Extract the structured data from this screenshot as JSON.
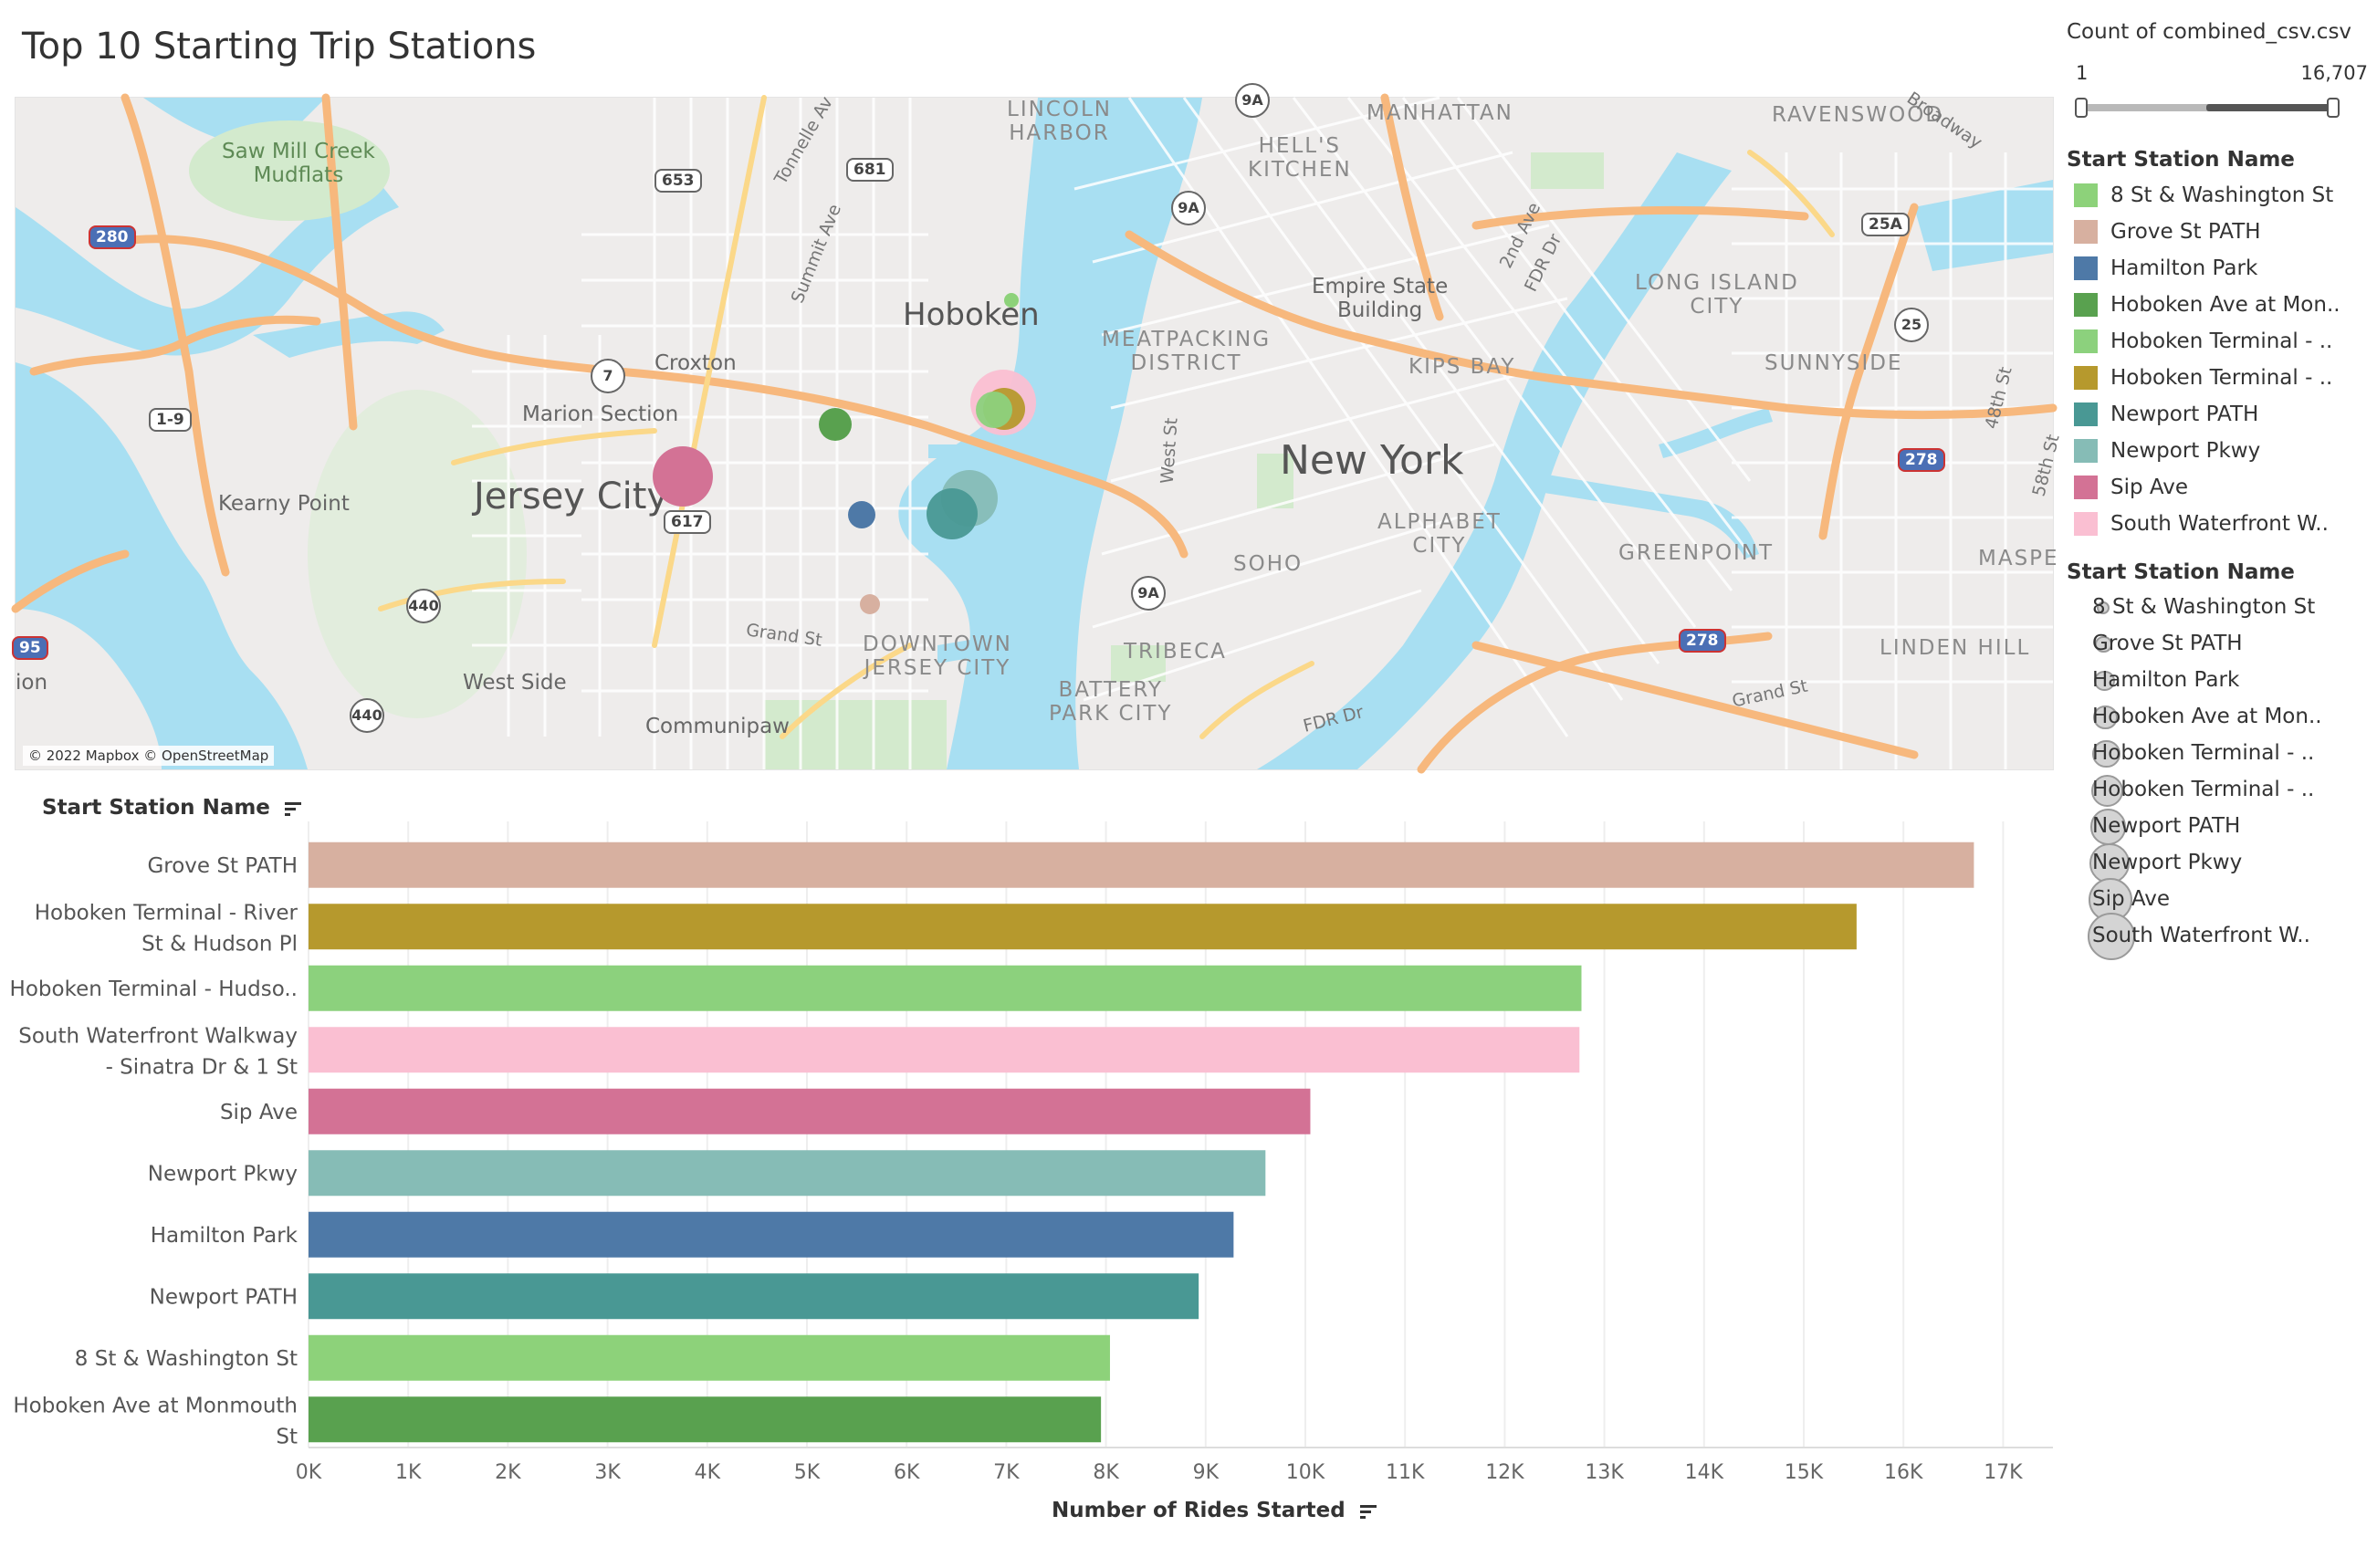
{
  "title": "Top 10 Starting Trip Stations",
  "map": {
    "attribution": "© 2022 Mapbox © OpenStreetMap",
    "labels": {
      "hoboken": "Hoboken",
      "jersey_city": "Jersey City",
      "new_york": "New York",
      "marion_section": "Marion Section",
      "croxton": "Croxton",
      "kearny_point": "Kearny Point",
      "west_side": "West Side",
      "communipaw": "Communipaw",
      "grand_st_nj": "Grand St",
      "grand_st_ny": "Grand St",
      "downtown_jc": "DOWNTOWN\nJERSEY CITY",
      "saw_mill": "Saw Mill Creek\nMudflats",
      "lincoln_harbor": "LINCOLN\nHARBOR",
      "manhattan": "MANHATTAN",
      "hells_kitchen": "HELL'S\nKITCHEN",
      "meatpacking": "MEATPACKING\nDISTRICT",
      "empire_state": "Empire State\nBuilding",
      "kips_bay": "KIPS BAY",
      "alphabet_city": "ALPHABET\nCITY",
      "soho": "SOHO",
      "tribeca": "TRIBECA",
      "battery_park": "BATTERY\nPARK CITY",
      "ravenswood": "RAVENSWOOD",
      "long_island_city": "LONG ISLAND\nCITY",
      "sunnyside": "SUNNYSIDE",
      "greenpoint": "GREENPOINT",
      "linden_hill": "LINDEN HILL",
      "maspe": "MASPE",
      "ion": "ion",
      "summit_ave": "Summit Ave",
      "tonnelle": "Tonnelle Av",
      "west_st": "West St",
      "second_ave": "2nd Ave",
      "fdr_dr_top": "FDR Dr",
      "fdr_dr_bottom": "FDR Dr",
      "broadway": "Broadway",
      "st48": "48th St",
      "st58": "58th St"
    },
    "shields": [
      "653",
      "681",
      "617",
      "440",
      "440",
      "7",
      "9A",
      "9A",
      "9A",
      "25",
      "25A",
      "1-9",
      "280",
      "278",
      "278",
      "95"
    ]
  },
  "legend": {
    "count_title": "Count of combined_csv.csv",
    "count_min": "1",
    "count_max": "16,707",
    "color_title": "Start Station Name",
    "color_items": [
      {
        "label": "8 St & Washington St",
        "color": "#8dd27a"
      },
      {
        "label": "Grove St PATH",
        "color": "#d7b0a0"
      },
      {
        "label": "Hamilton Park",
        "color": "#4e79a7"
      },
      {
        "label": "Hoboken Ave at Mon..",
        "color": "#59a14f"
      },
      {
        "label": "Hoboken Terminal - ..",
        "color": "#8cd17d"
      },
      {
        "label": "Hoboken Terminal - ..",
        "color": "#b6992d"
      },
      {
        "label": "Newport PATH",
        "color": "#499894"
      },
      {
        "label": "Newport Pkwy",
        "color": "#86bcb6"
      },
      {
        "label": "Sip Ave",
        "color": "#d37295"
      },
      {
        "label": "South Waterfront W..",
        "color": "#fabfd2"
      }
    ],
    "size_title": "Start Station Name",
    "size_items": [
      "8 St & Washington St",
      "Grove St PATH",
      "Hamilton Park",
      "Hoboken Ave at Mon..",
      "Hoboken Terminal - ..",
      "Hoboken Terminal - ..",
      "Newport PATH",
      "Newport Pkwy",
      "Sip Ave",
      "South Waterfront W.."
    ]
  },
  "chart_data": {
    "type": "bar",
    "orientation": "horizontal",
    "header": "Start Station Name",
    "xlabel": "Number of Rides Started",
    "xlim": [
      0,
      17500
    ],
    "ticks": [
      "0K",
      "1K",
      "2K",
      "3K",
      "4K",
      "5K",
      "6K",
      "7K",
      "8K",
      "9K",
      "10K",
      "11K",
      "12K",
      "13K",
      "14K",
      "15K",
      "16K",
      "17K"
    ],
    "categories": [
      [
        "Grove St PATH"
      ],
      [
        "Hoboken Terminal - River",
        "St & Hudson Pl"
      ],
      [
        "Hoboken Terminal - Hudso.."
      ],
      [
        "South Waterfront Walkway",
        "- Sinatra Dr & 1 St"
      ],
      [
        "Sip Ave"
      ],
      [
        "Newport Pkwy"
      ],
      [
        "Hamilton Park"
      ],
      [
        "Newport PATH"
      ],
      [
        "8 St & Washington St"
      ],
      [
        "Hoboken Ave at Monmouth",
        "St"
      ]
    ],
    "values": [
      16707,
      15530,
      12770,
      12750,
      10050,
      9600,
      9280,
      8930,
      8040,
      7950
    ],
    "colors": [
      "#d7b0a0",
      "#b6992d",
      "#8cd17d",
      "#fabfd2",
      "#d37295",
      "#86bcb6",
      "#4e79a7",
      "#499894",
      "#8dd27a",
      "#59a14f"
    ],
    "grid": true
  }
}
